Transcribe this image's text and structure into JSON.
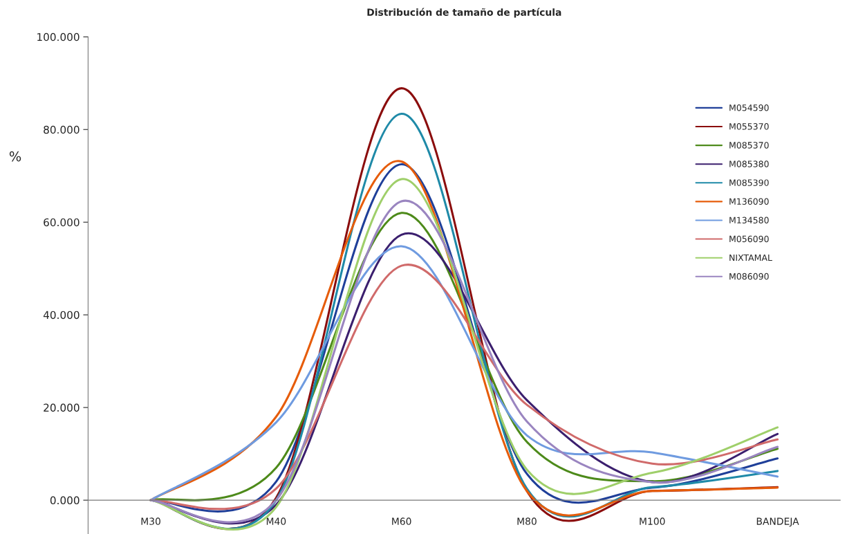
{
  "chart_data": {
    "type": "line",
    "title": "Distribución de tamaño de partícula",
    "ylabel": "%",
    "categories": [
      "M30",
      "M40",
      "M60",
      "M80",
      "M100",
      "BANDEJA"
    ],
    "ylim": [
      -7.3,
      100
    ],
    "yticks": [
      {
        "value": 0,
        "label": "0.000"
      },
      {
        "value": 20,
        "label": "20.000"
      },
      {
        "value": 40,
        "label": "40.000"
      },
      {
        "value": 60,
        "label": "60.000"
      },
      {
        "value": 80,
        "label": "80.000"
      },
      {
        "value": 100,
        "label": "100.000"
      }
    ],
    "grid": false,
    "legend": "top right",
    "marker": "none",
    "line_style": "solid",
    "series": [
      {
        "name": "M054590",
        "color": "#1f3f99",
        "values": [
          0,
          4,
          72.5,
          5.7,
          2.7,
          9.0
        ]
      },
      {
        "name": "M055370",
        "color": "#8b0d0d",
        "values": [
          0,
          0.5,
          88.9,
          2.0,
          2.0,
          2.8
        ]
      },
      {
        "name": "M085370",
        "color": "#4d8a1a",
        "values": [
          0,
          7,
          62.0,
          12.6,
          4.1,
          11.1
        ]
      },
      {
        "name": "M085380",
        "color": "#3b1f6e",
        "values": [
          0,
          -1,
          57.3,
          21.6,
          3.9,
          14.3
        ]
      },
      {
        "name": "M085390",
        "color": "#1f8aa8",
        "values": [
          0,
          0,
          83.4,
          2.5,
          2.8,
          6.3
        ]
      },
      {
        "name": "M136090",
        "color": "#e65c0a",
        "values": [
          0,
          18,
          73.1,
          2.0,
          2.0,
          2.7
        ]
      },
      {
        "name": "M134580",
        "color": "#6f9be0",
        "values": [
          0,
          16.8,
          54.8,
          14.0,
          10.3,
          5.1
        ]
      },
      {
        "name": "M056090",
        "color": "#d06a6a",
        "values": [
          0,
          2.5,
          50.6,
          20.6,
          7.9,
          13.1
        ]
      },
      {
        "name": "NIXTAMAL",
        "color": "#9fcf6a",
        "values": [
          0,
          -1.5,
          69.3,
          6.6,
          5.9,
          15.7
        ]
      },
      {
        "name": "M086090",
        "color": "#9a85c0",
        "values": [
          0,
          0,
          64.5,
          17.0,
          3.9,
          11.5
        ]
      }
    ]
  }
}
